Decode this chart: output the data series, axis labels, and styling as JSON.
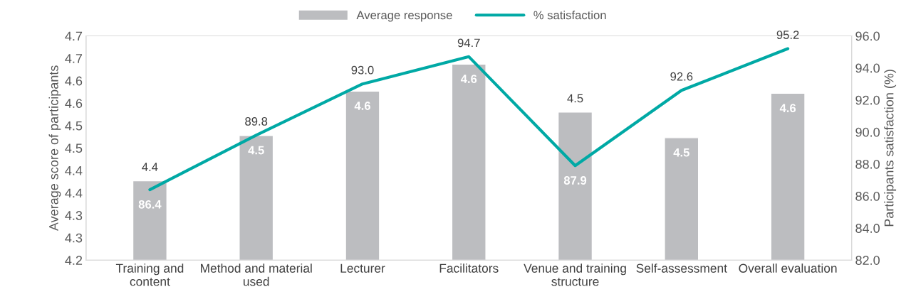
{
  "chart_data": {
    "type": "bar",
    "categories": [
      "Training and content",
      "Method and material used",
      "Lecturer",
      "Facilitators",
      "Venue and training structure",
      "Self-assessment",
      "Overall evaluation"
    ],
    "ylabel": "Average score of participants",
    "y2label": "Participants satisfaction (%)",
    "ylim": [
      4.2,
      4.7
    ],
    "yticks": [
      4.2,
      {
        "value": 4.25,
        "label": "4.3"
      },
      4.3,
      {
        "value": 4.35,
        "label": "4.4"
      },
      4.4,
      {
        "value": 4.45,
        "label": "4.5"
      },
      4.5,
      {
        "value": 4.55,
        "label": "4.6"
      },
      4.6,
      {
        "value": 4.65,
        "label": "4.7"
      },
      4.7
    ],
    "y2lim": [
      82,
      96
    ],
    "y2ticks": [
      {
        "value": 82,
        "label": "82.0"
      },
      {
        "value": 84,
        "label": "84.0"
      },
      {
        "value": 86,
        "label": "86.0"
      },
      {
        "value": 88,
        "label": "88.0"
      },
      {
        "value": 90,
        "label": "90.0"
      },
      {
        "value": 92,
        "label": "92.0"
      },
      {
        "value": 94,
        "label": "94.0"
      },
      {
        "value": 96,
        "label": "96.0"
      }
    ],
    "series": [
      {
        "name": "Average response",
        "color": "#bcbdc0",
        "values": [
          4.377,
          4.478,
          4.577,
          4.637,
          4.53,
          4.473,
          4.572
        ],
        "value_labels": [
          "4.4",
          "4.5",
          "4.6",
          "4.6",
          "4.5",
          "4.5",
          "4.6"
        ]
      },
      {
        "name": "% satisfaction",
        "type": "line",
        "axis": "y2",
        "color": "#00a9a5",
        "values": [
          86.4,
          89.8,
          93.0,
          94.7,
          87.9,
          92.6,
          95.2
        ],
        "value_labels": [
          "86.4",
          "89.8",
          "93.0",
          "94.7",
          "87.9",
          "92.6",
          "95.2"
        ]
      }
    ],
    "legend": "top",
    "grid": false
  }
}
